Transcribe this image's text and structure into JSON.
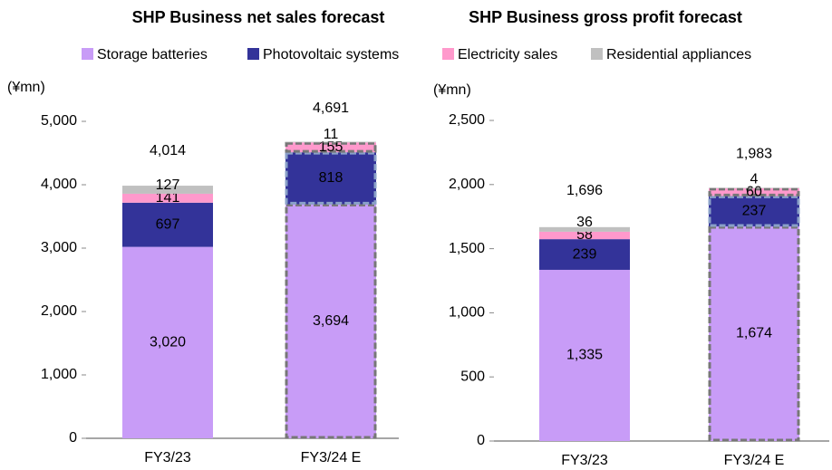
{
  "chart_data": [
    {
      "type": "bar",
      "stacked": true,
      "title": "SHP Business net sales forecast",
      "y_label": "(¥mn)",
      "categories": [
        "FY3/23",
        "FY3/24 E"
      ],
      "series": [
        {
          "name": "Storage batteries",
          "color": "#c89cf7",
          "values": [
            3020,
            3694
          ],
          "value_labels": [
            "3,020",
            "3,694"
          ]
        },
        {
          "name": "Photovoltaic systems",
          "color": "#333399",
          "values": [
            697,
            818
          ]
        },
        {
          "name": "Electricity sales",
          "color": "#ff99cc",
          "values": [
            141,
            155
          ]
        },
        {
          "name": "Residential appliances",
          "color": "#c0c0c0",
          "values": [
            127,
            11
          ]
        }
      ],
      "totals": {
        "values": [
          4014,
          4691
        ],
        "value_labels": [
          "4,014",
          "4,691"
        ]
      },
      "ylim": [
        0,
        5000
      ],
      "yticks": [
        0,
        {
          "value": 1000,
          "label": "1,000"
        },
        {
          "value": 2000,
          "label": "2,000"
        },
        {
          "value": 3000,
          "label": "3,000"
        },
        {
          "value": 4000,
          "label": "4,000"
        },
        {
          "value": 5000,
          "label": "5,000"
        }
      ]
    },
    {
      "type": "bar",
      "stacked": true,
      "title": "SHP Business gross profit forecast",
      "y_label": "(¥mn)",
      "categories": [
        "FY3/23",
        "FY3/24 E"
      ],
      "series": [
        {
          "name": "Storage batteries",
          "color": "#c89cf7",
          "values": [
            1335,
            1674
          ],
          "value_labels": [
            "1,335",
            "1,674"
          ]
        },
        {
          "name": "Photovoltaic systems",
          "color": "#333399",
          "values": [
            239,
            237
          ]
        },
        {
          "name": "Electricity sales",
          "color": "#ff99cc",
          "values": [
            58,
            60
          ]
        },
        {
          "name": "Residential appliances",
          "color": "#c0c0c0",
          "values": [
            36,
            4
          ]
        }
      ],
      "totals": {
        "values": [
          1696,
          1983
        ],
        "value_labels": [
          "1,696",
          "1,983"
        ]
      },
      "ylim": [
        0,
        2500
      ],
      "yticks": [
        0,
        500,
        {
          "value": 1000,
          "label": "1,000"
        },
        {
          "value": 1500,
          "label": "1,500"
        },
        {
          "value": 2000,
          "label": "2,000"
        },
        {
          "value": 2500,
          "label": "2,500"
        }
      ]
    }
  ]
}
